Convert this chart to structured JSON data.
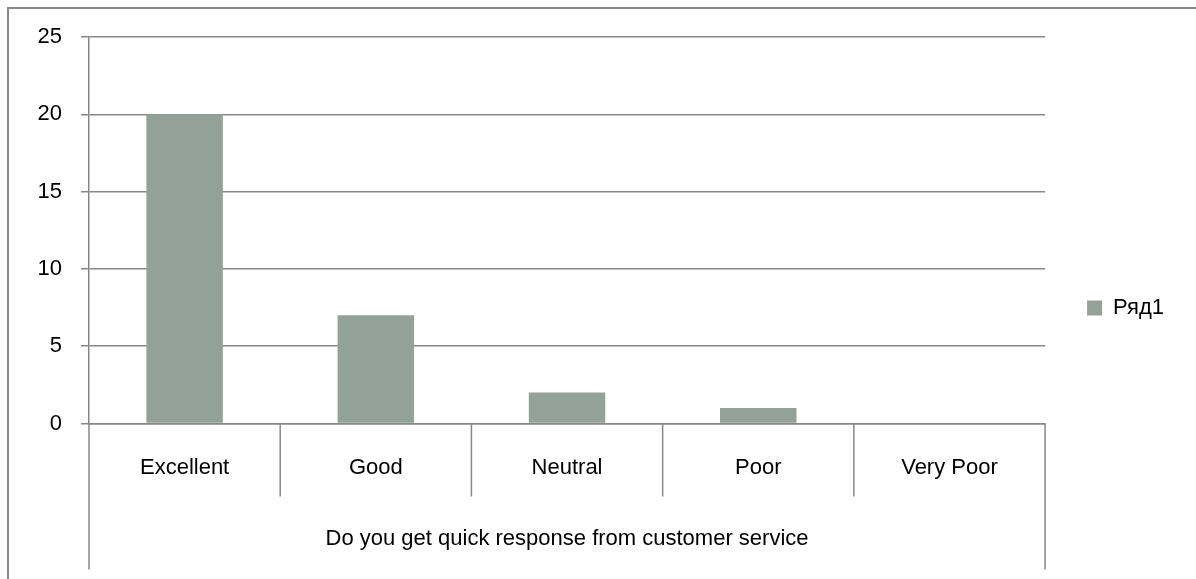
{
  "chart_data": {
    "type": "bar",
    "xlabel": "Do you get quick response from customer service",
    "categories": [
      "Excellent",
      "Good",
      "Neutral",
      "Poor",
      "Very Poor"
    ],
    "series": [
      {
        "name": "Ряд1",
        "color": "#93a299",
        "values": [
          20,
          7,
          2,
          1,
          0
        ]
      }
    ],
    "ylim": [
      0,
      25
    ],
    "yticks": [
      0,
      5,
      10,
      15,
      20,
      25
    ],
    "grid": "y",
    "legend": "right"
  }
}
